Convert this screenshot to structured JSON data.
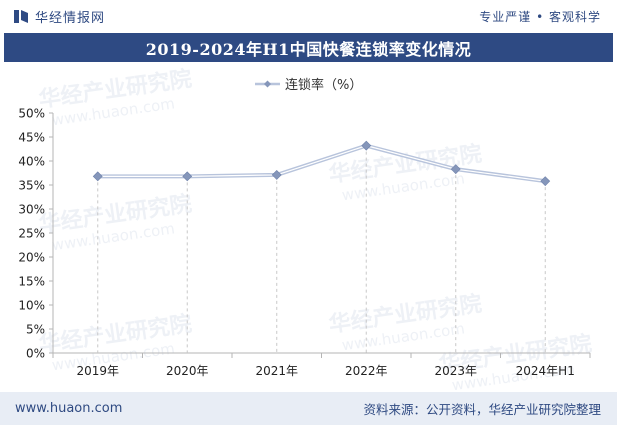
{
  "header": {
    "brand_name": "华经情报网",
    "slogan": "专业严谨 • 客观科学"
  },
  "title": "2019-2024年H1中国快餐连锁率变化情况",
  "footer": {
    "website": "www.huaon.com",
    "source": "资料来源：公开资料，华经产业研究院整理"
  },
  "watermark": {
    "cn": "华经产业研究院",
    "en": "www.huaon.com"
  },
  "colors": {
    "brand": "#2e4a83",
    "series_line": "#b8c4dc",
    "marker": "#8596ba",
    "footer_bg": "#e8edf5"
  },
  "chart_data": {
    "type": "line",
    "categories": [
      "2019年",
      "2020年",
      "2021年",
      "2022年",
      "2023年",
      "2024年H1"
    ],
    "series": [
      {
        "name": "连锁率（%）",
        "values": [
          36.8,
          36.8,
          37.1,
          43.2,
          38.3,
          35.8
        ]
      }
    ],
    "yticks": [
      "0%",
      "5%",
      "10%",
      "15%",
      "20%",
      "25%",
      "30%",
      "35%",
      "40%",
      "45%",
      "50%"
    ],
    "ylim": [
      0,
      50
    ],
    "grid": false,
    "legend_position": "top-center"
  }
}
